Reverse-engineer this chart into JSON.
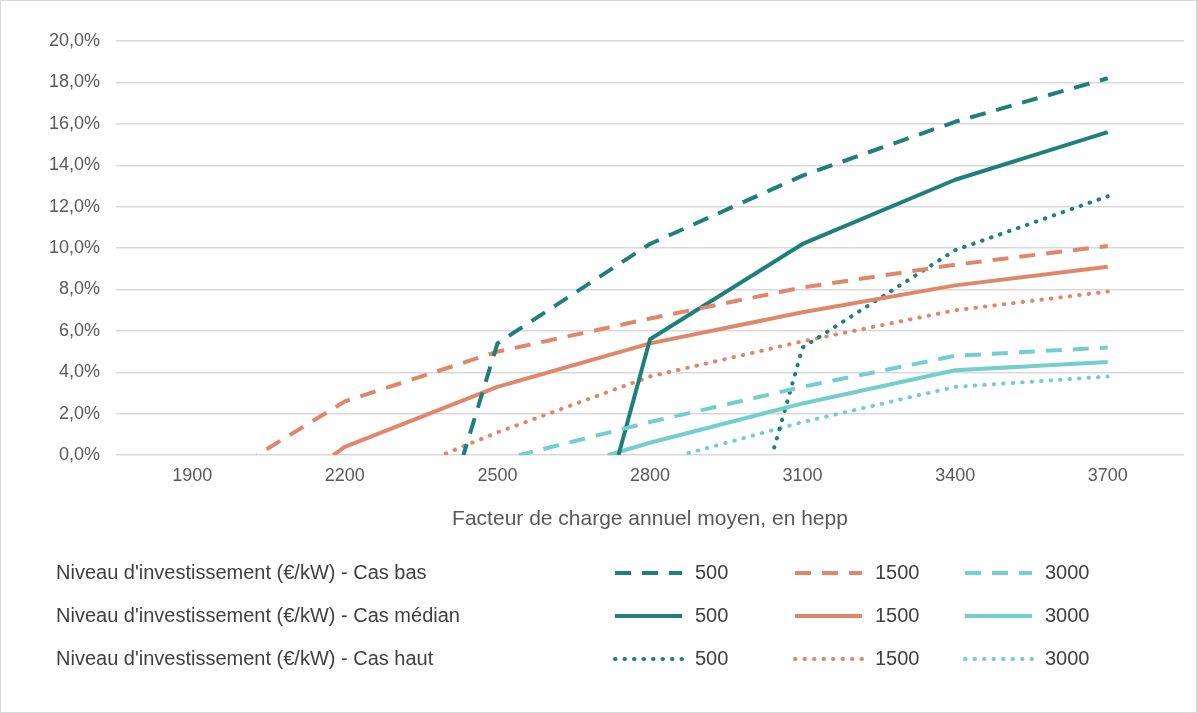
{
  "chart_data": {
    "type": "line",
    "xlabel": "Facteur de charge annuel moyen, en hepp",
    "xlim": [
      1750,
      3850
    ],
    "xticks": [
      1900,
      2200,
      2500,
      2800,
      3100,
      3400,
      3700
    ],
    "ylim": [
      0,
      20
    ],
    "yticks": [
      {
        "value": 0,
        "label": "0,0%"
      },
      {
        "value": 2,
        "label": "2,0%"
      },
      {
        "value": 4,
        "label": "4,0%"
      },
      {
        "value": 6,
        "label": "6,0%"
      },
      {
        "value": 8,
        "label": "8,0%"
      },
      {
        "value": 10,
        "label": "10,0%"
      },
      {
        "value": 12,
        "label": "12,0%"
      },
      {
        "value": 14,
        "label": "14,0%"
      },
      {
        "value": 16,
        "label": "16,0%"
      },
      {
        "value": 18,
        "label": "18,0%"
      },
      {
        "value": 20,
        "label": "20,0%"
      }
    ],
    "grid": "y",
    "legend": "bottom",
    "marker": "none",
    "annotations": [
      "Niveau d'investissement (€/kW) - Cas bas",
      "Niveau d'investissement (€/kW) - Cas médian",
      "Niveau d'investissement (€/kW) - Cas haut"
    ],
    "series": [
      {
        "name": "500",
        "color": "#1f7f7a",
        "line_style": "dashed",
        "x": [
          2433,
          2500,
          2800,
          3100,
          3400,
          3700
        ],
        "values": [
          0,
          5.4,
          10.2,
          13.5,
          16.1,
          18.2
        ]
      },
      {
        "name": "1500",
        "color": "#e0876a",
        "line_style": "dashed",
        "x": [
          2027,
          2200,
          2500,
          2800,
          3100,
          3400,
          3700
        ],
        "values": [
          0,
          2.6,
          5.0,
          6.6,
          8.1,
          9.2,
          10.1
        ]
      },
      {
        "name": "3000",
        "color": "#72cfcc",
        "line_style": "dashed",
        "x": [
          2542,
          2800,
          3100,
          3400,
          3700
        ],
        "values": [
          0,
          1.6,
          3.3,
          4.8,
          5.2
        ]
      },
      {
        "name": "500",
        "color": "#1f7f7a",
        "line_style": "solid",
        "x": [
          2738,
          2800,
          3100,
          3400,
          3700
        ],
        "values": [
          0,
          5.6,
          10.2,
          13.3,
          15.6
        ]
      },
      {
        "name": "1500",
        "color": "#e0876a",
        "line_style": "solid",
        "x": [
          2177,
          2200,
          2500,
          2800,
          3100,
          3400,
          3700
        ],
        "values": [
          0,
          0.4,
          3.3,
          5.4,
          6.9,
          8.2,
          9.1
        ]
      },
      {
        "name": "3000",
        "color": "#72cfcc",
        "line_style": "solid",
        "x": [
          2717,
          2800,
          3100,
          3400,
          3700
        ],
        "values": [
          0,
          0.6,
          2.5,
          4.1,
          4.5
        ]
      },
      {
        "name": "500",
        "color": "#1f7f7a",
        "line_style": "dotted",
        "x": [
          3040,
          3100,
          3400,
          3700
        ],
        "values": [
          0,
          5.2,
          9.9,
          12.5
        ]
      },
      {
        "name": "1500",
        "color": "#e0876a",
        "line_style": "dotted",
        "x": [
          2390,
          2500,
          2800,
          3100,
          3400,
          3700
        ],
        "values": [
          0,
          1.1,
          3.8,
          5.5,
          7.0,
          7.9
        ]
      },
      {
        "name": "3000",
        "color": "#72cfcc",
        "line_style": "dotted",
        "x": [
          2860,
          3100,
          3400,
          3700
        ],
        "values": [
          0,
          1.6,
          3.3,
          3.8
        ]
      }
    ]
  }
}
